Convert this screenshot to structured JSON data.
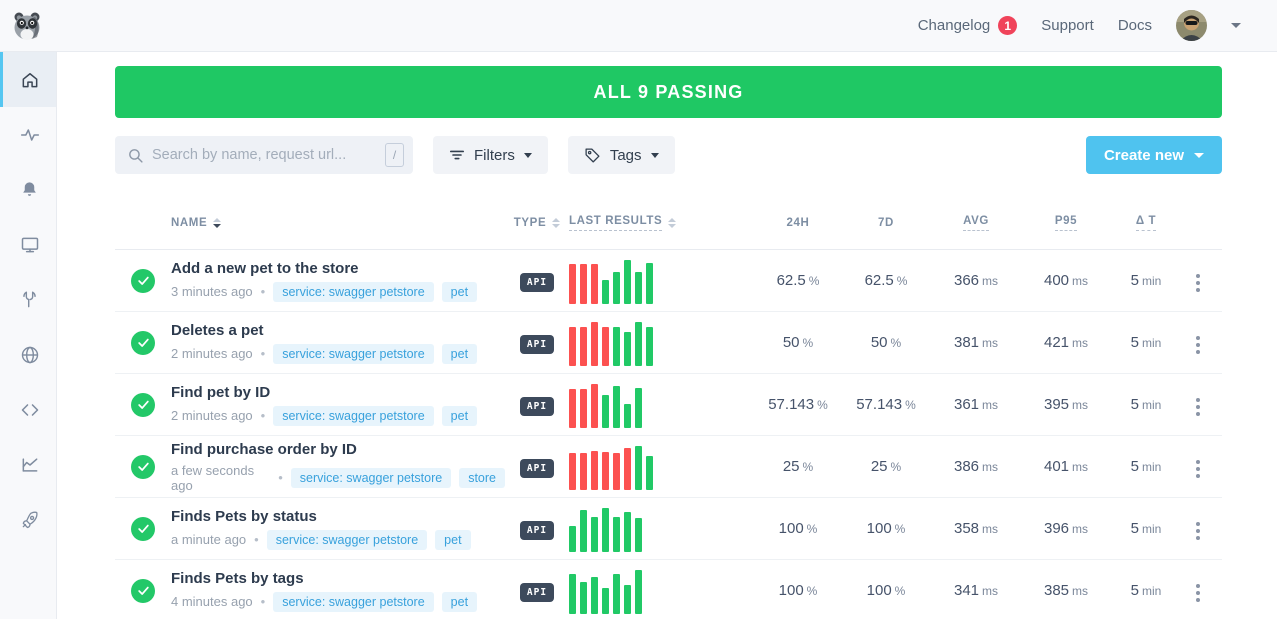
{
  "topbar": {
    "changelog": "Changelog",
    "changelog_badge": "1",
    "support": "Support",
    "docs": "Docs"
  },
  "sidebar": {
    "icons": [
      "home",
      "activity",
      "bell",
      "monitor",
      "wrench",
      "globe",
      "code",
      "chart",
      "rocket"
    ],
    "active_icon": "home"
  },
  "banner": {
    "text": "ALL 9 PASSING"
  },
  "toolbar": {
    "search_placeholder": "Search by name, request url...",
    "search_shortcut": "/",
    "filters": "Filters",
    "tags": "Tags",
    "create_new": "Create new"
  },
  "colors": {
    "banner_green": "#1fc864",
    "pass_green": "#21c966",
    "fail_red": "#fc5150",
    "create_blue": "#4fc3ef",
    "badge_red": "#f0435a"
  },
  "table": {
    "headers": [
      {
        "label": "NAME"
      },
      {
        "label": "TYPE"
      },
      {
        "label": "LAST RESULTS"
      },
      {
        "label": "24H"
      },
      {
        "label": "7D"
      },
      {
        "label": "AVG"
      },
      {
        "label": "P95"
      },
      {
        "label": "Δ T"
      }
    ],
    "units": {
      "h24": "%",
      "d7": "%",
      "avg": "ms",
      "p95": "ms",
      "dt": "min"
    },
    "rows": [
      {
        "name": "Add a new pet to the store",
        "time": "3 minutes ago",
        "tags": [
          "service: swagger petstore",
          "pet"
        ],
        "type": "API",
        "h24": "62.5",
        "d7": "62.5",
        "avg": "366",
        "p95": "400",
        "dt": "5",
        "bars": [
          [
            "f",
            90
          ],
          [
            "f",
            90
          ],
          [
            "f",
            90
          ],
          [
            "p",
            55
          ],
          [
            "p",
            72
          ],
          [
            "p",
            100
          ],
          [
            "p",
            72
          ],
          [
            "p",
            93
          ]
        ]
      },
      {
        "name": "Deletes a pet",
        "time": "2 minutes ago",
        "tags": [
          "service: swagger petstore",
          "pet"
        ],
        "type": "API",
        "h24": "50",
        "d7": "50",
        "avg": "381",
        "p95": "421",
        "dt": "5",
        "bars": [
          [
            "f",
            88
          ],
          [
            "f",
            88
          ],
          [
            "f",
            100
          ],
          [
            "f",
            88
          ],
          [
            "p",
            88
          ],
          [
            "p",
            78
          ],
          [
            "p",
            100
          ],
          [
            "p",
            88
          ]
        ]
      },
      {
        "name": "Find pet by ID",
        "time": "2 minutes ago",
        "tags": [
          "service: swagger petstore",
          "pet"
        ],
        "type": "API",
        "h24": "57.143",
        "d7": "57.143",
        "avg": "361",
        "p95": "395",
        "dt": "5",
        "bars": [
          [
            "f",
            88
          ],
          [
            "f",
            88
          ],
          [
            "f",
            100
          ],
          [
            "p",
            75
          ],
          [
            "p",
            95
          ],
          [
            "p",
            55
          ],
          [
            "p",
            90
          ]
        ]
      },
      {
        "name": "Find purchase order by ID",
        "time": "a few seconds ago",
        "tags": [
          "service: swagger petstore",
          "store"
        ],
        "type": "API",
        "h24": "25",
        "d7": "25",
        "avg": "386",
        "p95": "401",
        "dt": "5",
        "bars": [
          [
            "f",
            85
          ],
          [
            "f",
            85
          ],
          [
            "f",
            88
          ],
          [
            "f",
            86
          ],
          [
            "f",
            85
          ],
          [
            "f",
            95
          ],
          [
            "p",
            100
          ],
          [
            "p",
            78
          ]
        ]
      },
      {
        "name": "Finds Pets by status",
        "time": "a minute ago",
        "tags": [
          "service: swagger petstore",
          "pet"
        ],
        "type": "API",
        "h24": "100",
        "d7": "100",
        "avg": "358",
        "p95": "396",
        "dt": "5",
        "bars": [
          [
            "p",
            60
          ],
          [
            "p",
            95
          ],
          [
            "p",
            80
          ],
          [
            "p",
            100
          ],
          [
            "p",
            80
          ],
          [
            "p",
            90
          ],
          [
            "p",
            78
          ]
        ]
      },
      {
        "name": "Finds Pets by tags",
        "time": "4 minutes ago",
        "tags": [
          "service: swagger petstore",
          "pet"
        ],
        "type": "API",
        "h24": "100",
        "d7": "100",
        "avg": "341",
        "p95": "385",
        "dt": "5",
        "bars": [
          [
            "p",
            90
          ],
          [
            "p",
            72
          ],
          [
            "p",
            85
          ],
          [
            "p",
            58
          ],
          [
            "p",
            90
          ],
          [
            "p",
            65
          ],
          [
            "p",
            100
          ]
        ]
      }
    ]
  }
}
